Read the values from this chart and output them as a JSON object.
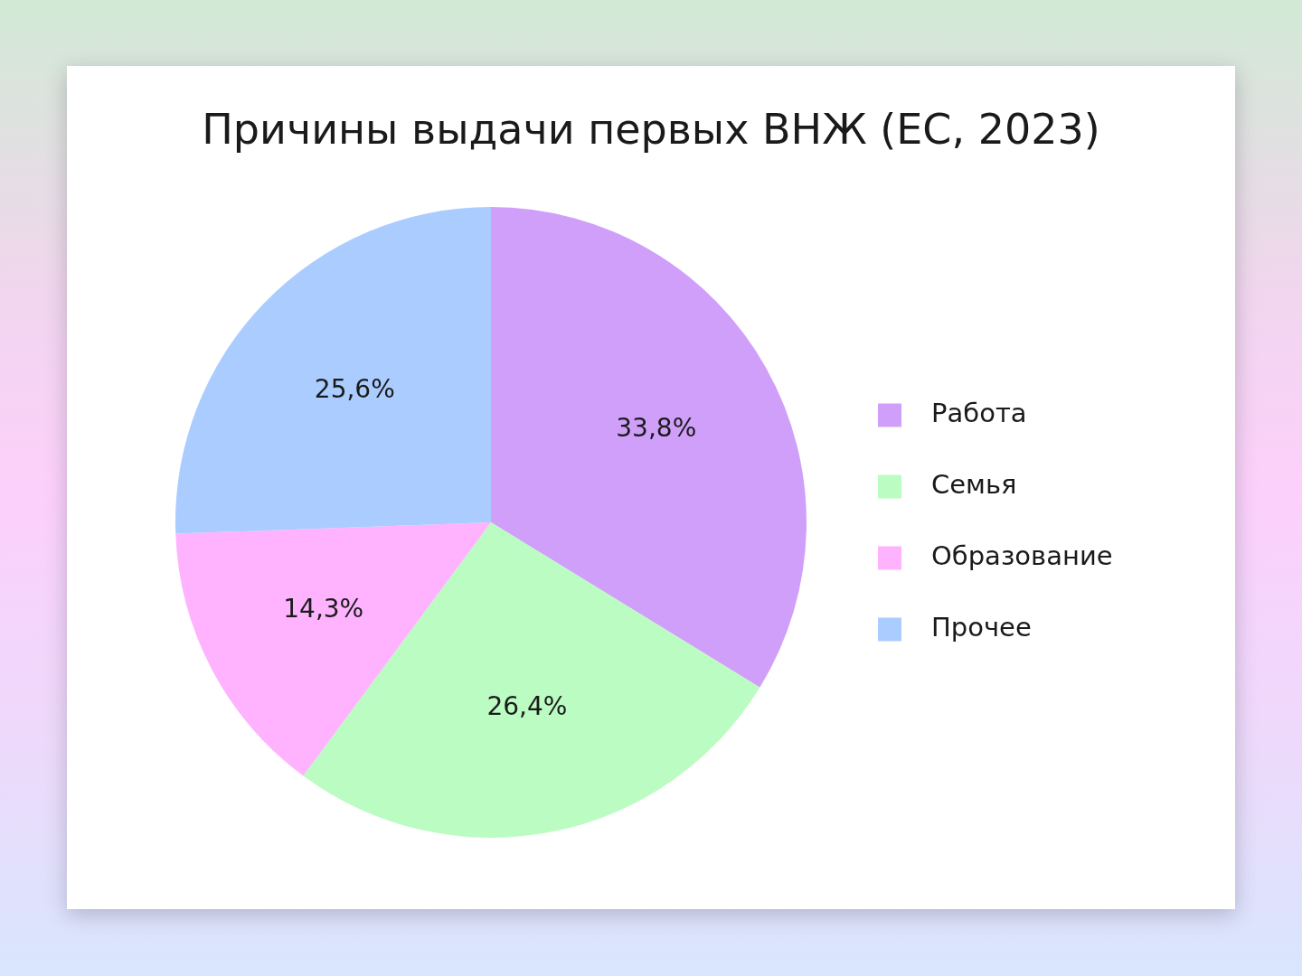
{
  "chart_data": {
    "type": "pie",
    "title": "Причины выдачи первых ВНЖ (ЕС, 2023)",
    "categories": [
      "Работа",
      "Семья",
      "Образование",
      "Прочее"
    ],
    "values": [
      33.8,
      26.4,
      14.3,
      25.6
    ],
    "colors": [
      "#d09ffa",
      "#bbfcc2",
      "#ffb3fe",
      "#aaccff"
    ],
    "value_labels": [
      "33,8%",
      "26,4%",
      "14,3%",
      "25,6%"
    ],
    "legend": "right"
  }
}
